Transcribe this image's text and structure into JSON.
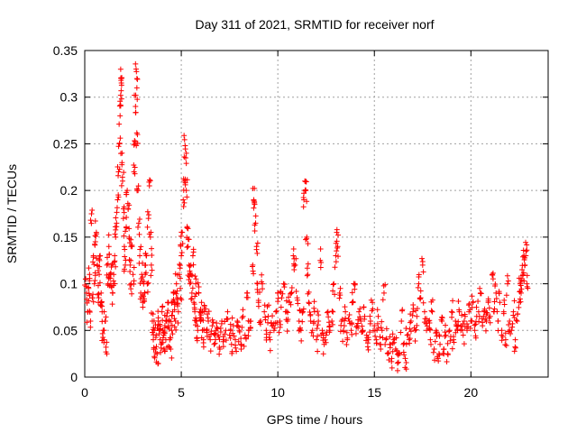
{
  "chart_data": {
    "type": "scatter",
    "title": "Day 311 of 2021, SRMTID for receiver norf",
    "xlabel": "GPS time / hours",
    "ylabel": "SRMTID / TECUs",
    "xlim": [
      0,
      24
    ],
    "ylim": [
      0,
      0.35
    ],
    "xticks": [
      0,
      5,
      10,
      15,
      20
    ],
    "xtick_labels": [
      "0",
      "5",
      "10",
      "15",
      "20"
    ],
    "yticks": [
      0,
      0.05,
      0.1,
      0.15,
      0.2,
      0.25,
      0.3,
      0.35
    ],
    "ytick_labels": [
      "0",
      "0.05",
      "0.1",
      "0.15",
      "0.2",
      "0.25",
      "0.3",
      "0.35"
    ],
    "grid": true,
    "marker": "plus",
    "color": "#ff0000",
    "series": [
      {
        "name": "SRMTID",
        "points": [
          [
            0.05,
            0.105
          ],
          [
            0.1,
            0.09
          ],
          [
            0.15,
            0.07
          ],
          [
            0.2,
            0.095
          ],
          [
            0.25,
            0.11
          ],
          [
            0.3,
            0.06
          ],
          [
            0.35,
            0.175
          ],
          [
            0.4,
            0.085
          ],
          [
            0.45,
            0.13
          ],
          [
            0.5,
            0.1
          ],
          [
            0.55,
            0.145
          ],
          [
            0.6,
            0.155
          ],
          [
            0.65,
            0.12
          ],
          [
            0.7,
            0.08
          ],
          [
            0.75,
            0.11
          ],
          [
            0.8,
            0.13
          ],
          [
            0.85,
            0.09
          ],
          [
            0.9,
            0.07
          ],
          [
            0.95,
            0.05
          ],
          [
            1.0,
            0.04
          ],
          [
            1.05,
            0.06
          ],
          [
            1.1,
            0.027
          ],
          [
            1.15,
            0.12
          ],
          [
            1.2,
            0.1
          ],
          [
            1.25,
            0.14
          ],
          [
            1.3,
            0.11
          ],
          [
            1.35,
            0.1
          ],
          [
            1.4,
            0.12
          ],
          [
            1.45,
            0.09
          ],
          [
            1.5,
            0.11
          ],
          [
            1.55,
            0.13
          ],
          [
            1.6,
            0.15
          ],
          [
            1.65,
            0.165
          ],
          [
            1.7,
            0.19
          ],
          [
            1.75,
            0.22
          ],
          [
            1.8,
            0.25
          ],
          [
            1.83,
            0.28
          ],
          [
            1.86,
            0.302
          ],
          [
            1.88,
            0.318
          ],
          [
            1.9,
            0.32
          ],
          [
            1.93,
            0.24
          ],
          [
            1.96,
            0.21
          ],
          [
            2.0,
            0.17
          ],
          [
            2.05,
            0.14
          ],
          [
            2.1,
            0.12
          ],
          [
            2.15,
            0.16
          ],
          [
            2.2,
            0.2
          ],
          [
            2.25,
            0.18
          ],
          [
            2.3,
            0.15
          ],
          [
            2.35,
            0.12
          ],
          [
            2.4,
            0.1
          ],
          [
            2.45,
            0.14
          ],
          [
            2.5,
            0.11
          ],
          [
            2.55,
            0.22
          ],
          [
            2.6,
            0.25
          ],
          [
            2.63,
            0.29
          ],
          [
            2.66,
            0.33
          ],
          [
            2.7,
            0.31
          ],
          [
            2.73,
            0.26
          ],
          [
            2.76,
            0.2
          ],
          [
            2.8,
            0.165
          ],
          [
            2.85,
            0.13
          ],
          [
            2.9,
            0.09
          ],
          [
            2.95,
            0.11
          ],
          [
            3.0,
            0.08
          ],
          [
            3.05,
            0.1
          ],
          [
            3.1,
            0.09
          ],
          [
            3.15,
            0.12
          ],
          [
            3.2,
            0.13
          ],
          [
            3.25,
            0.1
          ],
          [
            3.3,
            0.17
          ],
          [
            3.35,
            0.205
          ],
          [
            3.4,
            0.15
          ],
          [
            3.45,
            0.12
          ],
          [
            3.5,
            0.06
          ],
          [
            3.55,
            0.04
          ],
          [
            3.6,
            0.05
          ],
          [
            3.65,
            0.03
          ],
          [
            3.7,
            0.045
          ],
          [
            3.75,
            0.025
          ],
          [
            3.8,
            0.06
          ],
          [
            3.85,
            0.05
          ],
          [
            3.9,
            0.04
          ],
          [
            3.95,
            0.035
          ],
          [
            4.0,
            0.07
          ],
          [
            4.05,
            0.05
          ],
          [
            4.1,
            0.03
          ],
          [
            4.15,
            0.055
          ],
          [
            4.2,
            0.04
          ],
          [
            4.25,
            0.065
          ],
          [
            4.3,
            0.08
          ],
          [
            4.35,
            0.06
          ],
          [
            4.4,
            0.04
          ],
          [
            4.45,
            0.03
          ],
          [
            4.5,
            0.05
          ],
          [
            4.55,
            0.07
          ],
          [
            4.6,
            0.09
          ],
          [
            4.65,
            0.08
          ],
          [
            4.7,
            0.06
          ],
          [
            4.75,
            0.1
          ],
          [
            4.8,
            0.085
          ],
          [
            4.85,
            0.07
          ],
          [
            4.9,
            0.11
          ],
          [
            4.95,
            0.095
          ],
          [
            5.0,
            0.13
          ],
          [
            5.05,
            0.155
          ],
          [
            5.1,
            0.19
          ],
          [
            5.15,
            0.21
          ],
          [
            5.2,
            0.248
          ],
          [
            5.23,
            0.235
          ],
          [
            5.26,
            0.2
          ],
          [
            5.3,
            0.16
          ],
          [
            5.35,
            0.14
          ],
          [
            5.4,
            0.12
          ],
          [
            5.45,
            0.1
          ],
          [
            5.5,
            0.11
          ],
          [
            5.55,
            0.09
          ],
          [
            5.6,
            0.13
          ],
          [
            5.65,
            0.08
          ],
          [
            5.7,
            0.07
          ],
          [
            5.75,
            0.1
          ],
          [
            5.8,
            0.06
          ],
          [
            5.85,
            0.05
          ],
          [
            5.9,
            0.09
          ],
          [
            5.95,
            0.07
          ],
          [
            6.0,
            0.06
          ],
          [
            6.05,
            0.08
          ],
          [
            6.1,
            0.05
          ],
          [
            6.15,
            0.04
          ],
          [
            6.2,
            0.07
          ],
          [
            6.3,
            0.05
          ],
          [
            6.4,
            0.06
          ],
          [
            6.5,
            0.04
          ],
          [
            6.6,
            0.055
          ],
          [
            6.7,
            0.035
          ],
          [
            6.8,
            0.05
          ],
          [
            6.9,
            0.045
          ],
          [
            7.0,
            0.03
          ],
          [
            7.1,
            0.06
          ],
          [
            7.2,
            0.04
          ],
          [
            7.3,
            0.05
          ],
          [
            7.4,
            0.07
          ],
          [
            7.5,
            0.045
          ],
          [
            7.6,
            0.035
          ],
          [
            7.7,
            0.055
          ],
          [
            7.8,
            0.04
          ],
          [
            7.9,
            0.06
          ],
          [
            8.0,
            0.05
          ],
          [
            8.1,
            0.03
          ],
          [
            8.2,
            0.065
          ],
          [
            8.3,
            0.045
          ],
          [
            8.4,
            0.09
          ],
          [
            8.5,
            0.05
          ],
          [
            8.6,
            0.06
          ],
          [
            8.7,
            0.12
          ],
          [
            8.75,
            0.19
          ],
          [
            8.8,
            0.185
          ],
          [
            8.85,
            0.165
          ],
          [
            8.9,
            0.14
          ],
          [
            8.95,
            0.1
          ],
          [
            9.0,
            0.08
          ],
          [
            9.1,
            0.06
          ],
          [
            9.2,
            0.1
          ],
          [
            9.3,
            0.07
          ],
          [
            9.4,
            0.05
          ],
          [
            9.5,
            0.065
          ],
          [
            9.6,
            0.04
          ],
          [
            9.7,
            0.055
          ],
          [
            9.8,
            0.05
          ],
          [
            9.9,
            0.07
          ],
          [
            10.0,
            0.09
          ],
          [
            10.1,
            0.06
          ],
          [
            10.2,
            0.085
          ],
          [
            10.3,
            0.1
          ],
          [
            10.4,
            0.07
          ],
          [
            10.5,
            0.06
          ],
          [
            10.6,
            0.08
          ],
          [
            10.7,
            0.09
          ],
          [
            10.8,
            0.13
          ],
          [
            10.9,
            0.12
          ],
          [
            11.0,
            0.085
          ],
          [
            11.1,
            0.06
          ],
          [
            11.2,
            0.05
          ],
          [
            11.3,
            0.07
          ],
          [
            11.35,
            0.19
          ],
          [
            11.4,
            0.21
          ],
          [
            11.45,
            0.2
          ],
          [
            11.5,
            0.15
          ],
          [
            11.55,
            0.11
          ],
          [
            11.6,
            0.08
          ],
          [
            11.7,
            0.06
          ],
          [
            11.8,
            0.05
          ],
          [
            11.9,
            0.07
          ],
          [
            12.0,
            0.04
          ],
          [
            12.1,
            0.06
          ],
          [
            12.2,
            0.125
          ],
          [
            12.3,
            0.05
          ],
          [
            12.4,
            0.035
          ],
          [
            12.5,
            0.045
          ],
          [
            12.6,
            0.07
          ],
          [
            12.7,
            0.05
          ],
          [
            12.8,
            0.06
          ],
          [
            12.9,
            0.1
          ],
          [
            13.0,
            0.13
          ],
          [
            13.05,
            0.155
          ],
          [
            13.1,
            0.14
          ],
          [
            13.2,
            0.09
          ],
          [
            13.3,
            0.06
          ],
          [
            13.4,
            0.05
          ],
          [
            13.5,
            0.07
          ],
          [
            13.6,
            0.04
          ],
          [
            13.7,
            0.06
          ],
          [
            13.8,
            0.05
          ],
          [
            13.9,
            0.08
          ],
          [
            14.0,
            0.1
          ],
          [
            14.1,
            0.055
          ],
          [
            14.2,
            0.07
          ],
          [
            14.3,
            0.06
          ],
          [
            14.4,
            0.05
          ],
          [
            14.5,
            0.065
          ],
          [
            14.6,
            0.045
          ],
          [
            14.7,
            0.04
          ],
          [
            14.8,
            0.06
          ],
          [
            14.9,
            0.08
          ],
          [
            15.0,
            0.055
          ],
          [
            15.1,
            0.04
          ],
          [
            15.2,
            0.065
          ],
          [
            15.3,
            0.035
          ],
          [
            15.4,
            0.05
          ],
          [
            15.5,
            0.09
          ],
          [
            15.6,
            0.04
          ],
          [
            15.7,
            0.025
          ],
          [
            15.8,
            0.035
          ],
          [
            15.9,
            0.02
          ],
          [
            16.0,
            0.04
          ],
          [
            16.1,
            0.03
          ],
          [
            16.2,
            0.015
          ],
          [
            16.3,
            0.025
          ],
          [
            16.4,
            0.06
          ],
          [
            16.5,
            0.035
          ],
          [
            16.6,
            0.02
          ],
          [
            16.7,
            0.045
          ],
          [
            16.8,
            0.04
          ],
          [
            16.9,
            0.06
          ],
          [
            17.0,
            0.07
          ],
          [
            17.1,
            0.05
          ],
          [
            17.2,
            0.065
          ],
          [
            17.3,
            0.1
          ],
          [
            17.4,
            0.085
          ],
          [
            17.5,
            0.12
          ],
          [
            17.6,
            0.07
          ],
          [
            17.7,
            0.05
          ],
          [
            17.8,
            0.06
          ],
          [
            17.9,
            0.04
          ],
          [
            18.0,
            0.07
          ],
          [
            18.1,
            0.03
          ],
          [
            18.2,
            0.05
          ],
          [
            18.3,
            0.02
          ],
          [
            18.4,
            0.035
          ],
          [
            18.5,
            0.06
          ],
          [
            18.6,
            0.03
          ],
          [
            18.7,
            0.045
          ],
          [
            18.8,
            0.025
          ],
          [
            18.9,
            0.05
          ],
          [
            19.0,
            0.07
          ],
          [
            19.1,
            0.04
          ],
          [
            19.2,
            0.06
          ],
          [
            19.3,
            0.05
          ],
          [
            19.4,
            0.07
          ],
          [
            19.5,
            0.055
          ],
          [
            19.6,
            0.045
          ],
          [
            19.7,
            0.065
          ],
          [
            19.8,
            0.05
          ],
          [
            19.9,
            0.07
          ],
          [
            20.0,
            0.06
          ],
          [
            20.1,
            0.08
          ],
          [
            20.2,
            0.05
          ],
          [
            20.3,
            0.065
          ],
          [
            20.4,
            0.07
          ],
          [
            20.5,
            0.09
          ],
          [
            20.6,
            0.055
          ],
          [
            20.7,
            0.07
          ],
          [
            20.8,
            0.06
          ],
          [
            20.9,
            0.08
          ],
          [
            21.0,
            0.065
          ],
          [
            21.1,
            0.11
          ],
          [
            21.2,
            0.07
          ],
          [
            21.3,
            0.09
          ],
          [
            21.4,
            0.06
          ],
          [
            21.5,
            0.08
          ],
          [
            21.6,
            0.05
          ],
          [
            21.7,
            0.07
          ],
          [
            21.8,
            0.04
          ],
          [
            21.9,
            0.1
          ],
          [
            22.0,
            0.06
          ],
          [
            22.1,
            0.05
          ],
          [
            22.2,
            0.07
          ],
          [
            22.3,
            0.04
          ],
          [
            22.4,
            0.06
          ],
          [
            22.5,
            0.08
          ],
          [
            22.55,
            0.1
          ],
          [
            22.6,
            0.09
          ],
          [
            22.65,
            0.115
          ],
          [
            22.7,
            0.11
          ],
          [
            22.75,
            0.13
          ],
          [
            22.8,
            0.12
          ],
          [
            22.85,
            0.135
          ],
          [
            22.9,
            0.1
          ]
        ]
      }
    ]
  }
}
